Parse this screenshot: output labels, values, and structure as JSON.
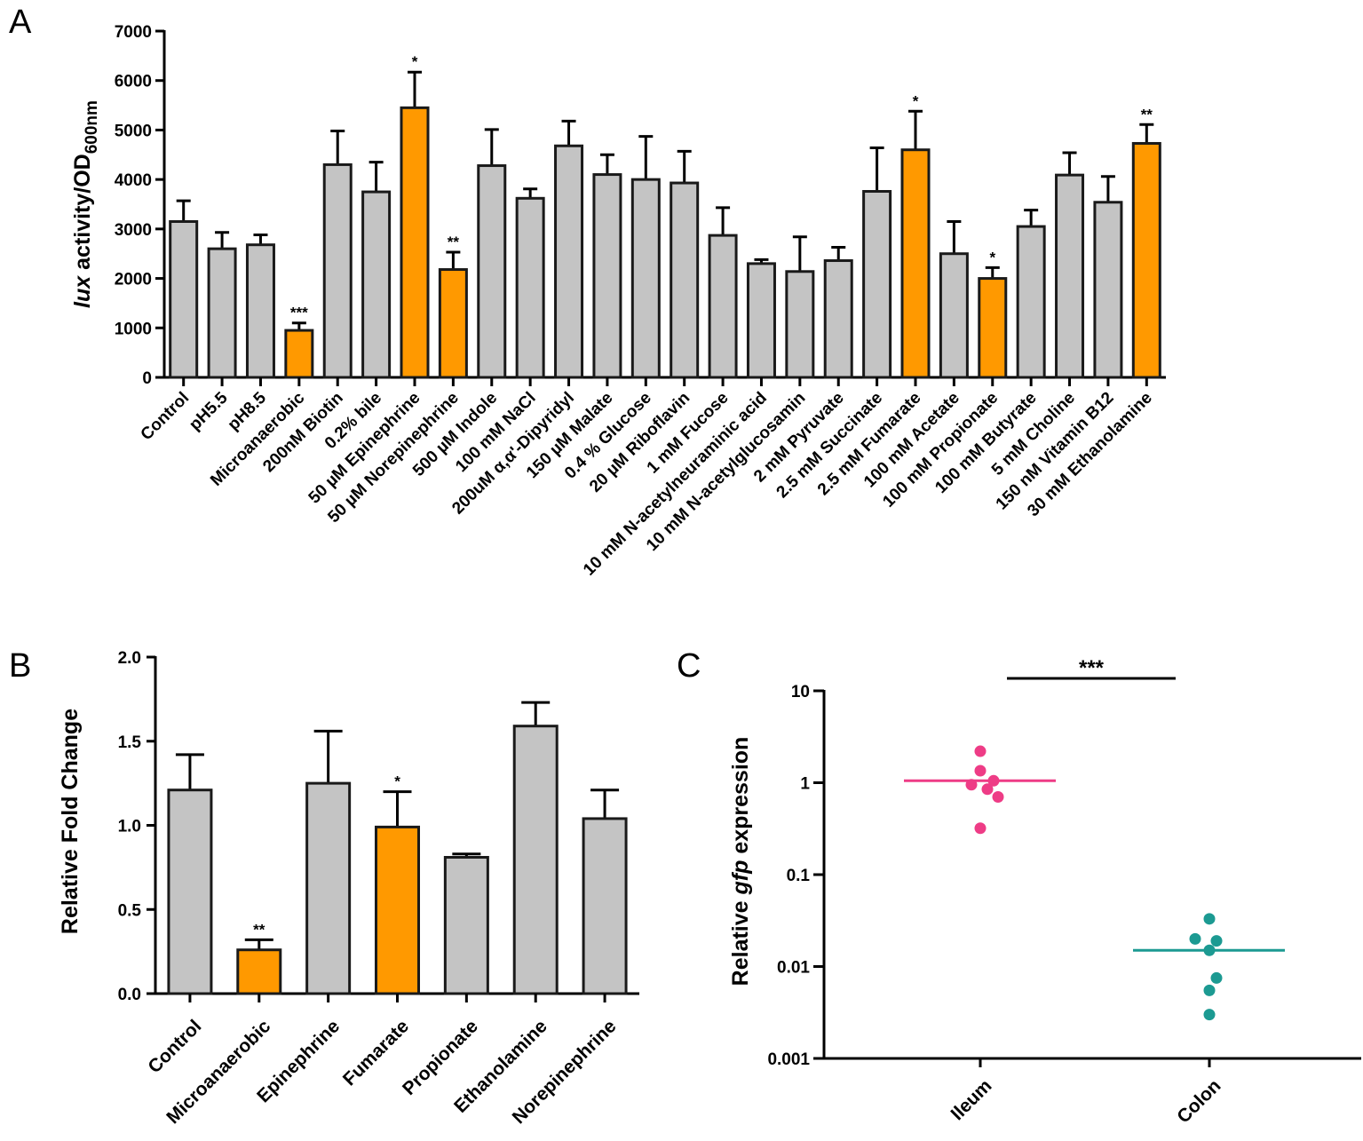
{
  "colors": {
    "grey": "#c4c4c4",
    "orange": "#ff9900",
    "ileum": "#ee3c86",
    "colon": "#1c9a92",
    "axis": "#000000"
  },
  "chart_data": [
    {
      "panel": "A",
      "type": "bar",
      "ylabel_italic": "lux",
      "ylabel_rest": " activity/OD",
      "ylabel_sub": "600nm",
      "ylim": [
        0,
        7000
      ],
      "yticks": [
        "0",
        "1000",
        "2000",
        "3000",
        "4000",
        "5000",
        "6000",
        "7000"
      ],
      "categories": [
        "Control",
        "pH5.5",
        "pH8.5",
        "Microanaerobic",
        "200nM Biotin",
        "0.2% bile",
        "50 µM Epinephrine",
        "50 µM Norepinephrine",
        "500 µM Indole",
        "100 mM NaCl",
        "200uM α,α'-Dipyridyl",
        "150 µM Malate",
        "0.4 % Glucose",
        "20 µM Riboflavin",
        "1 mM Fucose",
        "10 mM N-acetylneuraminic acid",
        "10 mM N-acetylglucosamin",
        "2 mM Pyruvate",
        "2.5 mM Succinate",
        "2.5 mM Fumarate",
        "100 mM Acetate",
        "100 mM Propionate",
        "100 mM Butyrate",
        "5 mM Choline",
        "150 nM Vitamin B12",
        "30 mM Ethanolamine"
      ],
      "values": [
        3150,
        2600,
        2680,
        950,
        4300,
        3750,
        5450,
        2180,
        4280,
        3620,
        4680,
        4100,
        4000,
        3930,
        2870,
        2300,
        2140,
        2360,
        3760,
        4600,
        2500,
        2000,
        3050,
        4090,
        3540,
        4730
      ],
      "errors": [
        420,
        330,
        200,
        150,
        680,
        600,
        720,
        350,
        730,
        190,
        500,
        400,
        870,
        640,
        560,
        80,
        700,
        270,
        880,
        780,
        650,
        220,
        330,
        450,
        520,
        380
      ],
      "highlight": [
        false,
        false,
        false,
        true,
        false,
        false,
        true,
        true,
        false,
        false,
        false,
        false,
        false,
        false,
        false,
        false,
        false,
        false,
        false,
        true,
        false,
        true,
        false,
        false,
        false,
        true
      ],
      "significance": [
        "",
        "",
        "",
        "***",
        "",
        "",
        "*",
        "**",
        "",
        "",
        "",
        "",
        "",
        "",
        "",
        "",
        "",
        "",
        "",
        "*",
        "",
        "*",
        "",
        "",
        "",
        "**"
      ]
    },
    {
      "panel": "B",
      "type": "bar",
      "ylabel": "Relative Fold Change",
      "ylim": [
        0,
        2.0
      ],
      "yticks": [
        "0.0",
        "0.5",
        "1.0",
        "1.5",
        "2.0"
      ],
      "categories": [
        "Control",
        "Microanaerobic",
        "Epinephrine",
        "Fumarate",
        "Propionate",
        "Ethanolamine",
        "Norepinephrine"
      ],
      "values": [
        1.21,
        0.26,
        1.25,
        0.99,
        0.81,
        1.59,
        1.04
      ],
      "errors": [
        0.21,
        0.06,
        0.31,
        0.21,
        0.02,
        0.14,
        0.17
      ],
      "highlight": [
        false,
        true,
        false,
        true,
        false,
        false,
        false
      ],
      "significance": [
        "",
        "**",
        "",
        "*",
        "",
        "",
        ""
      ]
    },
    {
      "panel": "C",
      "type": "scatter",
      "ylabel_pre": "Relative ",
      "ylabel_italic": "gfp",
      "ylabel_post": " expression",
      "yscale": "log",
      "ylim": [
        0.001,
        10
      ],
      "yticks": [
        "0.001",
        "0.01",
        "0.1",
        "1",
        "10"
      ],
      "categories": [
        "Ileum",
        "Colon"
      ],
      "series": [
        {
          "name": "Ileum",
          "values": [
            2.2,
            1.35,
            1.05,
            0.95,
            0.85,
            0.7,
            0.32
          ],
          "mean": 1.05
        },
        {
          "name": "Colon",
          "values": [
            0.033,
            0.02,
            0.019,
            0.015,
            0.0075,
            0.0055,
            0.003
          ],
          "mean": 0.015
        }
      ],
      "significance": "***"
    }
  ]
}
